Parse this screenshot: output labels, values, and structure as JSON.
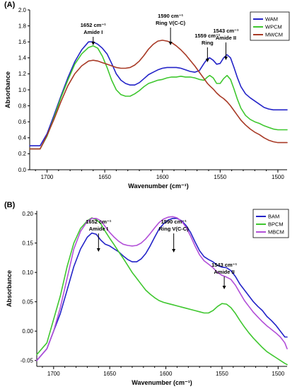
{
  "chart_data": [
    {
      "panel_label": "(A)",
      "type": "line",
      "xlabel": "Wavenumber (cm⁻¹)",
      "ylabel": "Absorbance",
      "xlim": [
        1715,
        1492
      ],
      "ylim": [
        0,
        2.0
      ],
      "x_ticks": [
        1700,
        1650,
        1600,
        1550,
        1500
      ],
      "y_ticks": [
        0.0,
        0.2,
        0.4,
        0.6,
        0.8,
        1.0,
        1.2,
        1.4,
        1.6,
        1.8,
        2.0
      ],
      "y_tick_labels": [
        "0.0",
        "0.2",
        "0.4",
        "0.6",
        "0.8",
        "1.0",
        "1.2",
        "1.4",
        "1.6",
        "1.8",
        "2.0"
      ],
      "legend_position": "top-right",
      "series": [
        {
          "name": "WAM",
          "color": "#2323c8",
          "x": [
            1715,
            1706,
            1700,
            1694,
            1688,
            1682,
            1676,
            1670,
            1664,
            1660,
            1656,
            1652,
            1648,
            1644,
            1640,
            1636,
            1632,
            1628,
            1624,
            1620,
            1616,
            1612,
            1608,
            1604,
            1600,
            1596,
            1592,
            1588,
            1584,
            1580,
            1576,
            1572,
            1568,
            1564,
            1561,
            1559,
            1556,
            1553,
            1550,
            1547,
            1544,
            1541,
            1538,
            1535,
            1532,
            1528,
            1524,
            1520,
            1516,
            1512,
            1508,
            1504,
            1500,
            1496,
            1492
          ],
          "y": [
            0.3,
            0.3,
            0.45,
            0.68,
            0.92,
            1.15,
            1.35,
            1.5,
            1.6,
            1.6,
            1.57,
            1.52,
            1.45,
            1.33,
            1.2,
            1.12,
            1.08,
            1.06,
            1.06,
            1.09,
            1.14,
            1.19,
            1.22,
            1.25,
            1.27,
            1.28,
            1.28,
            1.28,
            1.27,
            1.25,
            1.23,
            1.22,
            1.24,
            1.33,
            1.39,
            1.4,
            1.37,
            1.32,
            1.33,
            1.4,
            1.44,
            1.4,
            1.28,
            1.15,
            1.04,
            0.95,
            0.9,
            0.86,
            0.82,
            0.78,
            0.76,
            0.75,
            0.75,
            0.75,
            0.75
          ]
        },
        {
          "name": "WPCM",
          "color": "#3fc72f",
          "x": [
            1715,
            1706,
            1700,
            1694,
            1688,
            1682,
            1676,
            1670,
            1664,
            1660,
            1656,
            1652,
            1648,
            1644,
            1640,
            1636,
            1632,
            1628,
            1624,
            1620,
            1616,
            1612,
            1608,
            1604,
            1600,
            1596,
            1592,
            1588,
            1584,
            1580,
            1576,
            1572,
            1568,
            1564,
            1561,
            1559,
            1556,
            1553,
            1550,
            1547,
            1544,
            1541,
            1538,
            1535,
            1532,
            1528,
            1524,
            1520,
            1516,
            1512,
            1508,
            1504,
            1500,
            1496,
            1492
          ],
          "y": [
            0.26,
            0.26,
            0.42,
            0.65,
            0.9,
            1.12,
            1.32,
            1.45,
            1.53,
            1.55,
            1.52,
            1.42,
            1.28,
            1.12,
            1.0,
            0.94,
            0.92,
            0.92,
            0.95,
            0.99,
            1.04,
            1.08,
            1.1,
            1.12,
            1.13,
            1.15,
            1.16,
            1.16,
            1.17,
            1.16,
            1.16,
            1.15,
            1.13,
            1.12,
            1.16,
            1.18,
            1.15,
            1.08,
            1.08,
            1.14,
            1.18,
            1.13,
            1.01,
            0.88,
            0.77,
            0.68,
            0.63,
            0.6,
            0.58,
            0.55,
            0.53,
            0.51,
            0.5,
            0.5,
            0.5
          ]
        },
        {
          "name": "MWCM",
          "color": "#a83a26",
          "x": [
            1715,
            1706,
            1700,
            1694,
            1688,
            1682,
            1676,
            1670,
            1664,
            1660,
            1656,
            1652,
            1648,
            1644,
            1640,
            1636,
            1632,
            1628,
            1624,
            1620,
            1616,
            1612,
            1608,
            1604,
            1600,
            1596,
            1592,
            1588,
            1584,
            1580,
            1576,
            1572,
            1568,
            1564,
            1561,
            1559,
            1556,
            1553,
            1550,
            1547,
            1544,
            1541,
            1538,
            1535,
            1532,
            1528,
            1524,
            1520,
            1516,
            1512,
            1508,
            1504,
            1500,
            1496,
            1492
          ],
          "y": [
            0.26,
            0.26,
            0.43,
            0.63,
            0.85,
            1.05,
            1.2,
            1.3,
            1.36,
            1.37,
            1.36,
            1.34,
            1.32,
            1.3,
            1.28,
            1.27,
            1.27,
            1.28,
            1.31,
            1.36,
            1.43,
            1.51,
            1.57,
            1.61,
            1.62,
            1.61,
            1.59,
            1.55,
            1.5,
            1.44,
            1.37,
            1.3,
            1.22,
            1.14,
            1.08,
            1.05,
            1.01,
            0.96,
            0.92,
            0.89,
            0.85,
            0.8,
            0.74,
            0.68,
            0.62,
            0.56,
            0.51,
            0.47,
            0.44,
            0.4,
            0.37,
            0.35,
            0.34,
            0.34,
            0.34
          ]
        }
      ],
      "annotations": [
        {
          "lines": [
            "1652 cm⁻¹",
            "Amide I"
          ],
          "x": 1660
        },
        {
          "lines": [
            "1590 cm⁻¹",
            "Ring V(C-C)"
          ],
          "x": 1593
        },
        {
          "lines": [
            "1559 cm⁻¹",
            "Ring"
          ],
          "x": 1561
        },
        {
          "lines": [
            "1543 cm⁻¹",
            "Amide II"
          ],
          "x": 1545
        }
      ]
    },
    {
      "panel_label": "(B)",
      "type": "line",
      "xlabel": "Wavenumber (cm⁻¹)",
      "ylabel": "Absorbance",
      "xlim": [
        1715,
        1492
      ],
      "ylim": [
        -0.06,
        0.205
      ],
      "x_ticks": [
        1700,
        1650,
        1600,
        1550,
        1500
      ],
      "y_ticks": [
        -0.05,
        0.0,
        0.05,
        0.1,
        0.15,
        0.2
      ],
      "y_tick_labels": [
        "-0.05",
        "0.00",
        "0.05",
        "0.10",
        "0.15",
        "0.20"
      ],
      "legend_position": "top-right",
      "series": [
        {
          "name": "BAM",
          "color": "#2323c8",
          "x": [
            1715,
            1706,
            1700,
            1694,
            1688,
            1682,
            1676,
            1670,
            1666,
            1662,
            1658,
            1654,
            1650,
            1646,
            1642,
            1638,
            1634,
            1630,
            1626,
            1622,
            1618,
            1614,
            1610,
            1606,
            1602,
            1598,
            1594,
            1590,
            1586,
            1582,
            1578,
            1574,
            1570,
            1566,
            1562,
            1558,
            1554,
            1550,
            1546,
            1542,
            1538,
            1534,
            1530,
            1526,
            1522,
            1518,
            1514,
            1510,
            1506,
            1502,
            1498,
            1494,
            1492
          ],
          "y": [
            -0.05,
            -0.03,
            0.0,
            0.03,
            0.07,
            0.11,
            0.14,
            0.16,
            0.167,
            0.165,
            0.155,
            0.148,
            0.145,
            0.14,
            0.135,
            0.128,
            0.122,
            0.118,
            0.118,
            0.123,
            0.132,
            0.145,
            0.16,
            0.174,
            0.183,
            0.189,
            0.192,
            0.192,
            0.188,
            0.18,
            0.168,
            0.152,
            0.137,
            0.127,
            0.122,
            0.118,
            0.112,
            0.109,
            0.108,
            0.103,
            0.093,
            0.08,
            0.07,
            0.06,
            0.05,
            0.042,
            0.035,
            0.025,
            0.018,
            0.01,
            0.0,
            -0.01,
            -0.01
          ]
        },
        {
          "name": "BPCM",
          "color": "#3fc72f",
          "x": [
            1715,
            1706,
            1700,
            1694,
            1688,
            1682,
            1676,
            1670,
            1666,
            1662,
            1658,
            1654,
            1650,
            1646,
            1642,
            1638,
            1634,
            1630,
            1626,
            1622,
            1618,
            1614,
            1610,
            1606,
            1602,
            1598,
            1594,
            1590,
            1586,
            1582,
            1578,
            1574,
            1570,
            1566,
            1562,
            1558,
            1554,
            1550,
            1546,
            1542,
            1538,
            1534,
            1530,
            1526,
            1522,
            1518,
            1514,
            1510,
            1506,
            1502,
            1498,
            1494,
            1492
          ],
          "y": [
            -0.04,
            -0.02,
            0.02,
            0.06,
            0.11,
            0.15,
            0.175,
            0.188,
            0.193,
            0.19,
            0.183,
            0.17,
            0.158,
            0.147,
            0.135,
            0.124,
            0.112,
            0.1,
            0.09,
            0.08,
            0.07,
            0.063,
            0.057,
            0.052,
            0.049,
            0.047,
            0.045,
            0.043,
            0.041,
            0.039,
            0.037,
            0.035,
            0.033,
            0.031,
            0.031,
            0.035,
            0.042,
            0.047,
            0.046,
            0.04,
            0.03,
            0.018,
            0.007,
            -0.003,
            -0.012,
            -0.02,
            -0.028,
            -0.035,
            -0.04,
            -0.045,
            -0.05,
            -0.055,
            -0.057
          ]
        },
        {
          "name": "MBCM",
          "color": "#b24fd8",
          "x": [
            1715,
            1706,
            1700,
            1694,
            1688,
            1682,
            1676,
            1670,
            1666,
            1662,
            1658,
            1654,
            1650,
            1646,
            1642,
            1638,
            1634,
            1630,
            1626,
            1622,
            1618,
            1614,
            1610,
            1606,
            1602,
            1598,
            1594,
            1590,
            1586,
            1582,
            1578,
            1574,
            1570,
            1566,
            1562,
            1558,
            1554,
            1550,
            1546,
            1542,
            1538,
            1534,
            1530,
            1526,
            1522,
            1518,
            1514,
            1510,
            1506,
            1502,
            1498,
            1494,
            1492
          ],
          "y": [
            -0.05,
            -0.03,
            0.0,
            0.04,
            0.09,
            0.14,
            0.17,
            0.187,
            0.192,
            0.192,
            0.188,
            0.178,
            0.168,
            0.16,
            0.153,
            0.148,
            0.146,
            0.145,
            0.146,
            0.15,
            0.157,
            0.166,
            0.176,
            0.185,
            0.191,
            0.194,
            0.195,
            0.193,
            0.187,
            0.177,
            0.162,
            0.145,
            0.13,
            0.12,
            0.114,
            0.108,
            0.1,
            0.095,
            0.092,
            0.088,
            0.078,
            0.065,
            0.052,
            0.042,
            0.032,
            0.024,
            0.016,
            0.009,
            0.003,
            -0.003,
            -0.01,
            -0.02,
            -0.03
          ]
        }
      ],
      "annotations": [
        {
          "lines": [
            "1652 cm⁻¹",
            "Amide I"
          ],
          "x": 1660
        },
        {
          "lines": [
            "1590 cm⁻¹",
            "Ring V(C-C)"
          ],
          "x": 1593
        },
        {
          "lines": [
            "1543 cm⁻¹",
            "Amide II"
          ],
          "x": 1548
        }
      ]
    }
  ]
}
